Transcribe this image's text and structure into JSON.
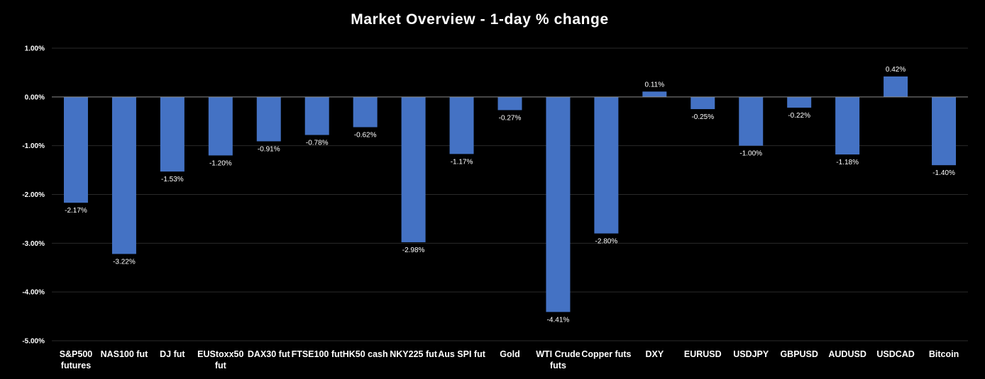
{
  "chart_data": {
    "type": "bar",
    "title": "Market Overview - 1-day % change",
    "xlabel": "",
    "ylabel": "",
    "ylim": [
      -5.0,
      1.0
    ],
    "y_ticks": [
      "1.00%",
      "0.00%",
      "-1.00%",
      "-2.00%",
      "-3.00%",
      "-4.00%",
      "-5.00%"
    ],
    "grid": true,
    "legend": "none",
    "bar_color": "#4472C4",
    "categories": [
      "S&P500 futures",
      "NAS100 fut",
      "DJ fut",
      "EUStoxx50 fut",
      "DAX30 fut",
      "FTSE100 fut",
      "HK50 cash",
      "NKY225 fut",
      "Aus SPI fut",
      "Gold",
      "WTI Crude futs",
      "Copper futs",
      "DXY",
      "EURUSD",
      "USDJPY",
      "GBPUSD",
      "AUDUSD",
      "USDCAD",
      "Bitcoin"
    ],
    "category_lines": [
      [
        "S&P500",
        "futures"
      ],
      [
        "NAS100 fut"
      ],
      [
        "DJ fut"
      ],
      [
        "EUStoxx50",
        "fut"
      ],
      [
        "DAX30 fut"
      ],
      [
        "FTSE100 fut"
      ],
      [
        "HK50 cash"
      ],
      [
        "NKY225 fut"
      ],
      [
        "Aus SPI fut"
      ],
      [
        "Gold"
      ],
      [
        "WTI Crude",
        "futs"
      ],
      [
        "Copper futs"
      ],
      [
        "DXY"
      ],
      [
        "EURUSD"
      ],
      [
        "USDJPY"
      ],
      [
        "GBPUSD"
      ],
      [
        "AUDUSD"
      ],
      [
        "USDCAD"
      ],
      [
        "Bitcoin"
      ]
    ],
    "values": [
      -2.17,
      -3.22,
      -1.53,
      -1.2,
      -0.91,
      -0.78,
      -0.62,
      -2.98,
      -1.17,
      -0.27,
      -4.41,
      -2.8,
      0.11,
      -0.25,
      -1.0,
      -0.22,
      -1.18,
      0.42,
      -1.4
    ],
    "data_labels": [
      "-2.17%",
      "-3.22%",
      "-1.53%",
      "-1.20%",
      "-0.91%",
      "-0.78%",
      "-0.62%",
      "-2.98%",
      "-1.17%",
      "-0.27%",
      "-4.41%",
      "-2.80%",
      "0.11%",
      "-0.25%",
      "-1.00%",
      "-0.22%",
      "-1.18%",
      "0.42%",
      "-1.40%"
    ]
  }
}
